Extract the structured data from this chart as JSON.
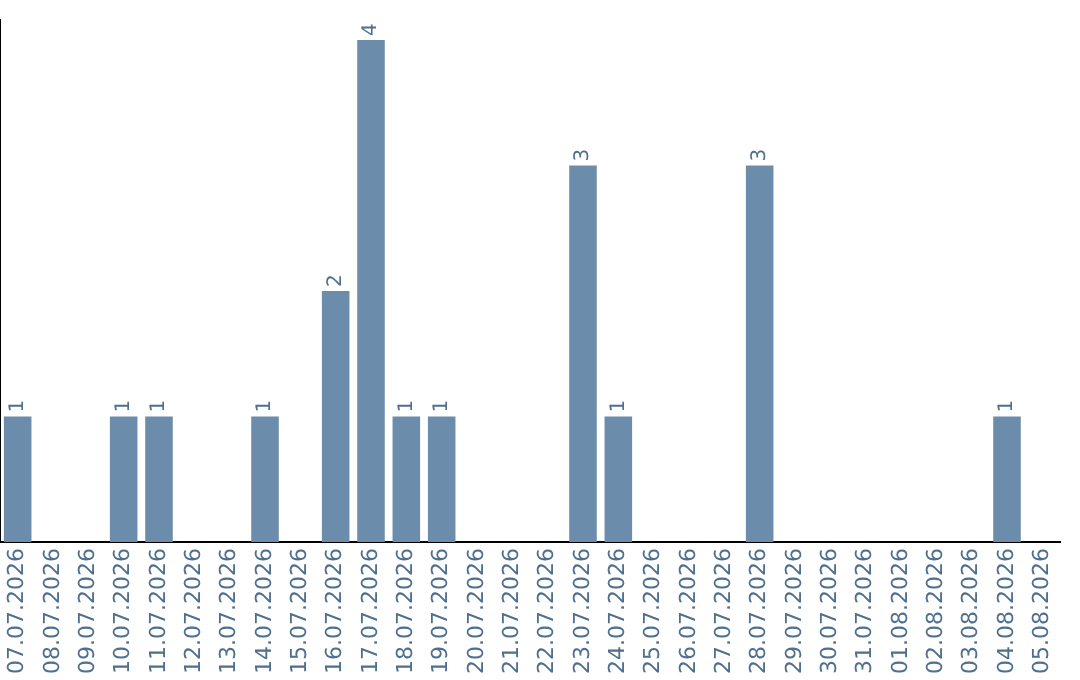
{
  "chart_data": {
    "type": "bar",
    "categories": [
      "07.07.2026",
      "08.07.2026",
      "09.07.2026",
      "10.07.2026",
      "11.07.2026",
      "12.07.2026",
      "13.07.2026",
      "14.07.2026",
      "15.07.2026",
      "16.07.2026",
      "17.07.2026",
      "18.07.2026",
      "19.07.2026",
      "20.07.2026",
      "21.07.2026",
      "22.07.2026",
      "23.07.2026",
      "24.07.2026",
      "25.07.2026",
      "26.07.2026",
      "27.07.2026",
      "28.07.2026",
      "29.07.2026",
      "30.07.2026",
      "31.07.2026",
      "01.08.2026",
      "02.08.2026",
      "03.08.2026",
      "04.08.2026",
      "05.08.2026"
    ],
    "values": [
      1,
      0,
      0,
      1,
      1,
      0,
      0,
      1,
      0,
      2,
      4,
      1,
      1,
      0,
      0,
      0,
      3,
      1,
      0,
      0,
      0,
      3,
      0,
      0,
      0,
      0,
      0,
      0,
      1,
      0
    ],
    "value_labels": [
      "1",
      null,
      null,
      "1",
      "1",
      null,
      null,
      "1",
      null,
      "2",
      "4",
      "1",
      "1",
      null,
      null,
      null,
      "3",
      "1",
      null,
      null,
      null,
      "3",
      null,
      null,
      null,
      null,
      null,
      null,
      "1",
      null
    ],
    "color": "#6b8cab",
    "ylim": [
      0,
      4.16
    ],
    "tick_labels": "x",
    "grid": false,
    "legend": false
  }
}
